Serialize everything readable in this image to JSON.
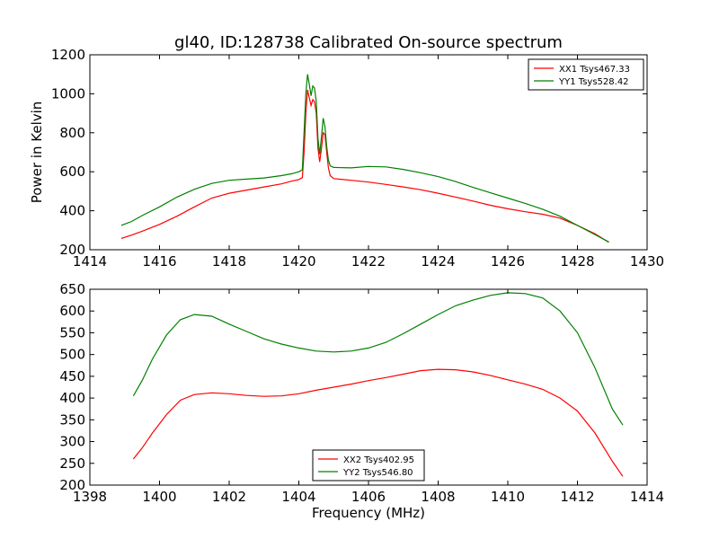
{
  "title": "gl40, ID:128738 Calibrated On-source spectrum",
  "chart_data": [
    {
      "type": "line",
      "ylabel": "Power in Kelvin",
      "xlabel": "",
      "xlim": [
        1414,
        1430
      ],
      "ylim": [
        200,
        1200
      ],
      "xticks": [
        1414,
        1416,
        1418,
        1420,
        1422,
        1424,
        1426,
        1428,
        1430
      ],
      "yticks": [
        200,
        400,
        600,
        800,
        1000,
        1200
      ],
      "grid": false,
      "legend_position": "top-right",
      "series": [
        {
          "name": "XX1 Tsys467.33",
          "color": "#ff0000",
          "points": [
            [
              1414.9,
              258
            ],
            [
              1415.2,
              275
            ],
            [
              1415.5,
              295
            ],
            [
              1416,
              330
            ],
            [
              1416.5,
              372
            ],
            [
              1417,
              420
            ],
            [
              1417.5,
              465
            ],
            [
              1418,
              490
            ],
            [
              1418.5,
              506
            ],
            [
              1419,
              522
            ],
            [
              1419.5,
              538
            ],
            [
              1419.8,
              552
            ],
            [
              1420.0,
              560
            ],
            [
              1420.1,
              570
            ],
            [
              1420.15,
              700
            ],
            [
              1420.2,
              900
            ],
            [
              1420.25,
              1020
            ],
            [
              1420.3,
              980
            ],
            [
              1420.35,
              940
            ],
            [
              1420.4,
              970
            ],
            [
              1420.45,
              960
            ],
            [
              1420.5,
              900
            ],
            [
              1420.55,
              720
            ],
            [
              1420.6,
              650
            ],
            [
              1420.65,
              720
            ],
            [
              1420.7,
              800
            ],
            [
              1420.75,
              790
            ],
            [
              1420.8,
              700
            ],
            [
              1420.85,
              620
            ],
            [
              1420.9,
              580
            ],
            [
              1421,
              565
            ],
            [
              1421.5,
              556
            ],
            [
              1422,
              547
            ],
            [
              1422.5,
              535
            ],
            [
              1423,
              522
            ],
            [
              1423.5,
              508
            ],
            [
              1424,
              490
            ],
            [
              1424.5,
              470
            ],
            [
              1425,
              450
            ],
            [
              1425.5,
              428
            ],
            [
              1426,
              410
            ],
            [
              1426.5,
              395
            ],
            [
              1427,
              382
            ],
            [
              1427.5,
              362
            ],
            [
              1428,
              325
            ],
            [
              1428.5,
              282
            ],
            [
              1428.9,
              238
            ]
          ]
        },
        {
          "name": "YY1 Tsys528.42",
          "color": "#008000",
          "points": [
            [
              1414.9,
              325
            ],
            [
              1415.2,
              345
            ],
            [
              1415.5,
              375
            ],
            [
              1416,
              420
            ],
            [
              1416.5,
              470
            ],
            [
              1417,
              510
            ],
            [
              1417.5,
              540
            ],
            [
              1418,
              556
            ],
            [
              1418.5,
              562
            ],
            [
              1419,
              568
            ],
            [
              1419.5,
              580
            ],
            [
              1419.8,
              590
            ],
            [
              1420.0,
              600
            ],
            [
              1420.1,
              610
            ],
            [
              1420.15,
              800
            ],
            [
              1420.2,
              1000
            ],
            [
              1420.25,
              1100
            ],
            [
              1420.3,
              1050
            ],
            [
              1420.35,
              990
            ],
            [
              1420.4,
              1040
            ],
            [
              1420.45,
              1030
            ],
            [
              1420.5,
              960
            ],
            [
              1420.55,
              770
            ],
            [
              1420.6,
              690
            ],
            [
              1420.65,
              780
            ],
            [
              1420.7,
              875
            ],
            [
              1420.75,
              830
            ],
            [
              1420.8,
              730
            ],
            [
              1420.85,
              660
            ],
            [
              1420.9,
              630
            ],
            [
              1421,
              622
            ],
            [
              1421.5,
              620
            ],
            [
              1422,
              627
            ],
            [
              1422.5,
              625
            ],
            [
              1423,
              612
            ],
            [
              1423.5,
              595
            ],
            [
              1424,
              575
            ],
            [
              1424.5,
              550
            ],
            [
              1425,
              520
            ],
            [
              1425.5,
              492
            ],
            [
              1426,
              465
            ],
            [
              1426.5,
              438
            ],
            [
              1427,
              408
            ],
            [
              1427.5,
              372
            ],
            [
              1428,
              325
            ],
            [
              1428.5,
              278
            ],
            [
              1428.9,
              240
            ]
          ]
        }
      ]
    },
    {
      "type": "line",
      "ylabel": "",
      "xlabel": "Frequency (MHz)",
      "xlim": [
        1398,
        1414
      ],
      "ylim": [
        200,
        650
      ],
      "xticks": [
        1398,
        1400,
        1402,
        1404,
        1406,
        1408,
        1410,
        1412,
        1414
      ],
      "yticks": [
        200,
        250,
        300,
        350,
        400,
        450,
        500,
        550,
        600,
        650
      ],
      "grid": false,
      "legend_position": "bottom-center",
      "series": [
        {
          "name": "XX2 Tsys402.95",
          "color": "#ff0000",
          "points": [
            [
              1399.25,
              260
            ],
            [
              1399.5,
              285
            ],
            [
              1399.8,
              320
            ],
            [
              1400.2,
              362
            ],
            [
              1400.6,
              395
            ],
            [
              1401,
              408
            ],
            [
              1401.5,
              412
            ],
            [
              1402,
              410
            ],
            [
              1402.5,
              406
            ],
            [
              1403,
              404
            ],
            [
              1403.5,
              405
            ],
            [
              1404,
              410
            ],
            [
              1404.5,
              418
            ],
            [
              1405,
              425
            ],
            [
              1405.5,
              432
            ],
            [
              1406,
              440
            ],
            [
              1406.5,
              447
            ],
            [
              1407,
              455
            ],
            [
              1407.5,
              463
            ],
            [
              1408,
              466
            ],
            [
              1408.5,
              465
            ],
            [
              1409,
              460
            ],
            [
              1409.5,
              452
            ],
            [
              1410,
              442
            ],
            [
              1410.5,
              432
            ],
            [
              1411,
              420
            ],
            [
              1411.5,
              400
            ],
            [
              1412,
              370
            ],
            [
              1412.5,
              320
            ],
            [
              1413,
              255
            ],
            [
              1413.3,
              220
            ]
          ]
        },
        {
          "name": "YY2 Tsys546.80",
          "color": "#008000",
          "points": [
            [
              1399.25,
              405
            ],
            [
              1399.5,
              440
            ],
            [
              1399.8,
              490
            ],
            [
              1400.2,
              545
            ],
            [
              1400.6,
              580
            ],
            [
              1401,
              592
            ],
            [
              1401.5,
              588
            ],
            [
              1402,
              570
            ],
            [
              1402.5,
              553
            ],
            [
              1403,
              536
            ],
            [
              1403.5,
              524
            ],
            [
              1404,
              515
            ],
            [
              1404.5,
              508
            ],
            [
              1405,
              506
            ],
            [
              1405.5,
              508
            ],
            [
              1406,
              515
            ],
            [
              1406.5,
              528
            ],
            [
              1407,
              548
            ],
            [
              1407.5,
              570
            ],
            [
              1408,
              592
            ],
            [
              1408.5,
              612
            ],
            [
              1409,
              625
            ],
            [
              1409.5,
              636
            ],
            [
              1410,
              642
            ],
            [
              1410.5,
              640
            ],
            [
              1411,
              630
            ],
            [
              1411.5,
              600
            ],
            [
              1412,
              550
            ],
            [
              1412.5,
              470
            ],
            [
              1413,
              375
            ],
            [
              1413.3,
              338
            ]
          ]
        }
      ]
    }
  ]
}
